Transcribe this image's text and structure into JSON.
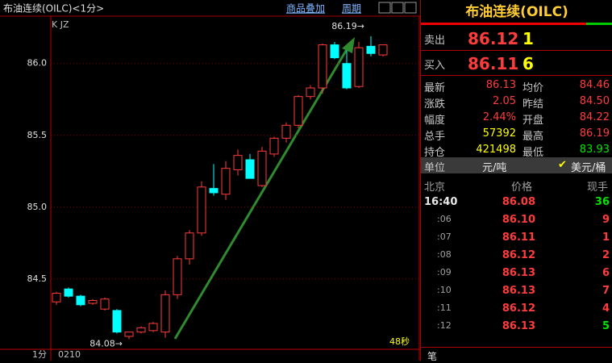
{
  "header": {
    "title": "布油连续(OILC)<1分>",
    "overlay": "商品叠加",
    "period": "周期"
  },
  "chart_data": {
    "type": "candlestick",
    "label": "K JZ",
    "timer": "48秒",
    "open": [
      84.34,
      84.43,
      84.38,
      84.33,
      84.29,
      84.28,
      84.1,
      84.13,
      84.14,
      84.13,
      84.39,
      84.64,
      84.82,
      85.13,
      85.09,
      85.26,
      85.33,
      85.15,
      85.37,
      85.48,
      85.57,
      85.77,
      85.83,
      86.13,
      86.0,
      85.84,
      86.12,
      86.06
    ],
    "high": [
      84.41,
      84.44,
      84.39,
      84.36,
      84.37,
      84.29,
      84.13,
      84.17,
      84.2,
      84.42,
      84.66,
      84.84,
      85.18,
      85.3,
      85.32,
      85.4,
      85.37,
      85.42,
      85.49,
      85.59,
      85.78,
      85.85,
      86.14,
      86.15,
      86.09,
      86.15,
      86.19,
      86.13
    ],
    "low": [
      84.32,
      84.37,
      84.31,
      84.32,
      84.28,
      84.12,
      84.08,
      84.12,
      84.13,
      84.09,
      84.36,
      84.6,
      84.8,
      85.08,
      85.05,
      85.22,
      85.2,
      85.14,
      85.35,
      85.45,
      85.55,
      85.75,
      85.79,
      86.03,
      85.82,
      85.83,
      86.05,
      86.05
    ],
    "close": [
      84.4,
      84.38,
      84.32,
      84.35,
      84.36,
      84.13,
      84.13,
      84.16,
      84.19,
      84.39,
      84.64,
      84.82,
      85.14,
      85.1,
      85.27,
      85.36,
      85.2,
      85.39,
      85.48,
      85.57,
      85.77,
      85.83,
      86.13,
      86.04,
      85.83,
      86.11,
      86.07,
      86.13
    ],
    "up_color": "#ff3c3c",
    "down_color": "#00ffff",
    "ylim": [
      84.01,
      86.33
    ],
    "yticks": [
      84.5,
      {
        "value": 85,
        "label": "85.0"
      },
      85.5,
      {
        "value": 86,
        "label": "86.0"
      }
    ],
    "grid": true,
    "annotations": {
      "high": "86.19→",
      "low": "84.08→"
    }
  },
  "footer": {
    "period": "1分",
    "code": "0210",
    "tab": "笔"
  },
  "quote": {
    "title": "布油连续(OILC)",
    "sell": {
      "label": "卖出",
      "price": "86.12",
      "qty": "1"
    },
    "buy": {
      "label": "买入",
      "price": "86.11",
      "qty": "6"
    },
    "stats": [
      [
        "最新",
        "86.13",
        "均价",
        "84.46"
      ],
      [
        "涨跌",
        "2.05",
        "昨结",
        "84.50"
      ],
      [
        "幅度",
        "2.44%",
        "开盘",
        "84.22"
      ],
      [
        "总手",
        "57392",
        "最高",
        "86.19"
      ],
      [
        "持仓",
        "421498",
        "最低",
        "83.93"
      ]
    ],
    "unit": {
      "label": "单位",
      "value": "元/吨",
      "option": "美元/桶"
    },
    "trades": {
      "headers": [
        "北京",
        "价格",
        "现手"
      ],
      "rows": [
        [
          "16:40",
          "86.08",
          "36"
        ],
        [
          ":06",
          "86.10",
          "9"
        ],
        [
          ":07",
          "86.11",
          "1"
        ],
        [
          ":08",
          "86.12",
          "2"
        ],
        [
          ":09",
          "86.13",
          "6"
        ],
        [
          ":10",
          "86.13",
          "7"
        ],
        [
          ":11",
          "86.12",
          "4"
        ],
        [
          ":12",
          "86.13",
          "5"
        ]
      ]
    }
  }
}
